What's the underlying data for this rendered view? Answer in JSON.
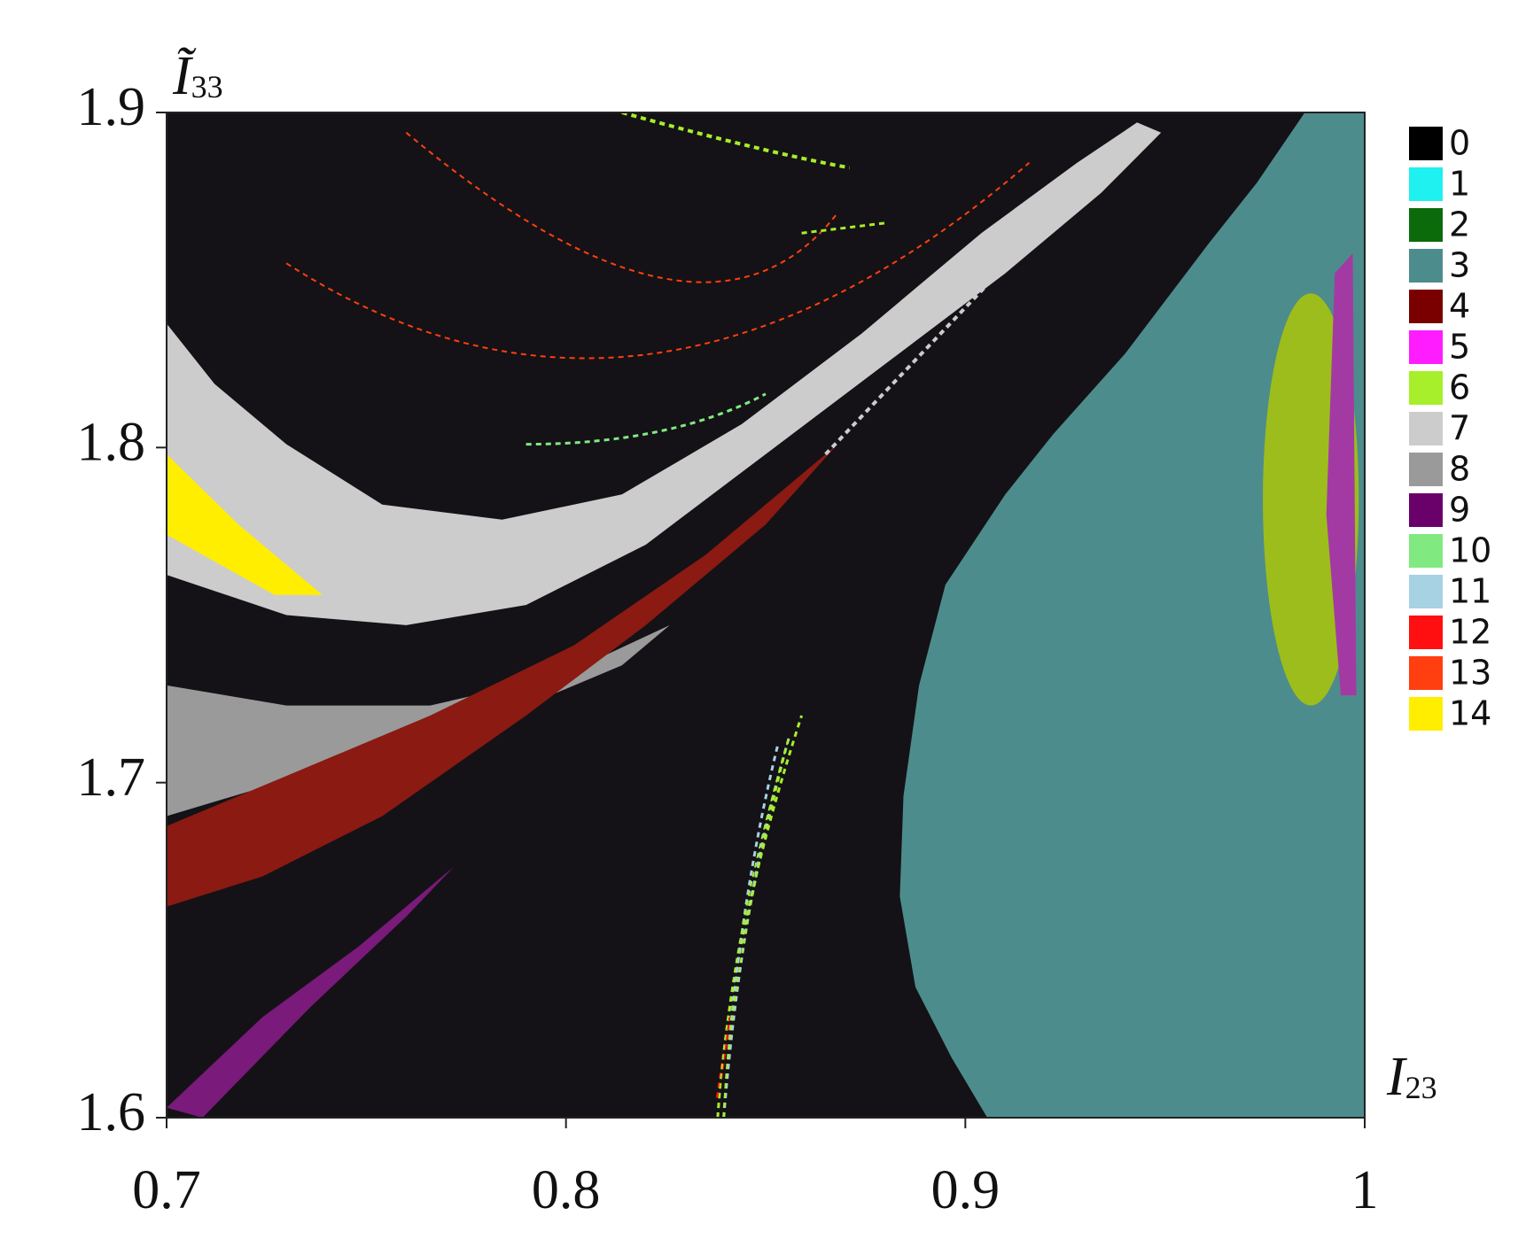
{
  "chart_data": {
    "type": "category_map",
    "x_label": {
      "symbol": "I",
      "subscript": "23"
    },
    "y_label": {
      "symbol": "Ĩ",
      "subscript": "33"
    },
    "xlim": [
      0.7,
      1
    ],
    "ylim": [
      1.6,
      1.9
    ],
    "xticks": [
      0.7,
      0.8,
      0.9,
      1
    ],
    "yticks": [
      1.6,
      1.7,
      1.8,
      1.9
    ],
    "legend": {
      "position": "right",
      "categories": [
        "0",
        "1",
        "2",
        "3",
        "4",
        "5",
        "6",
        "7",
        "8",
        "9",
        "10",
        "11",
        "12",
        "13",
        "14"
      ],
      "colors": [
        "#000000",
        "#1ff0f0",
        "#0b6b0b",
        "#4d8c8c",
        "#7a0000",
        "#ff1cff",
        "#a6ef2a",
        "#cccccc",
        "#9a9a9a",
        "#6a006a",
        "#80ea80",
        "#a6d2e4",
        "#ff0f0f",
        "#ff3f0f",
        "#ffee00"
      ]
    }
  }
}
